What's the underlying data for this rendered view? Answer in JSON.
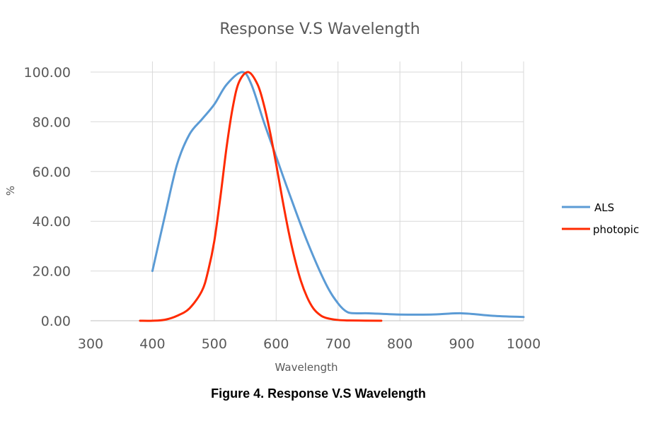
{
  "chart_data": {
    "type": "line",
    "title": "Response V.S Wavelength",
    "xlabel": "Wavelength",
    "ylabel": "%",
    "caption": "Figure 4. Response V.S Wavelength",
    "xlim": [
      300,
      1000
    ],
    "ylim": [
      0,
      100
    ],
    "xticks": [
      "300",
      "400",
      "500",
      "600",
      "700",
      "800",
      "900",
      "1000"
    ],
    "yticks": [
      "0.00",
      "20.00",
      "40.00",
      "60.00",
      "80.00",
      "100.00"
    ],
    "grid": true,
    "legend_position": "right",
    "series": [
      {
        "name": "ALS",
        "color": "#5b9bd5",
        "x": [
          400,
          420,
          440,
          460,
          480,
          500,
          520,
          545,
          560,
          580,
          600,
          620,
          650,
          680,
          700,
          715,
          730,
          750,
          800,
          850,
          900,
          950,
          1000
        ],
        "y": [
          20,
          42,
          63,
          75,
          81,
          87,
          95,
          100,
          95,
          80,
          66,
          52,
          32,
          15,
          7,
          3.5,
          3,
          3,
          2.5,
          2.5,
          3,
          2,
          1.5
        ]
      },
      {
        "name": "photopic",
        "color": "#ff2a00",
        "x": [
          380,
          400,
          420,
          440,
          460,
          480,
          490,
          500,
          510,
          520,
          530,
          540,
          555,
          570,
          580,
          590,
          600,
          610,
          620,
          630,
          640,
          650,
          660,
          670,
          680,
          700,
          720,
          770
        ],
        "y": [
          0,
          0,
          0.4,
          2,
          5,
          12,
          20,
          32,
          50,
          70,
          86,
          96,
          100,
          95,
          87,
          76,
          63,
          49,
          36,
          25,
          16,
          9.5,
          5,
          2.5,
          1.2,
          0.3,
          0.1,
          0
        ]
      }
    ]
  }
}
